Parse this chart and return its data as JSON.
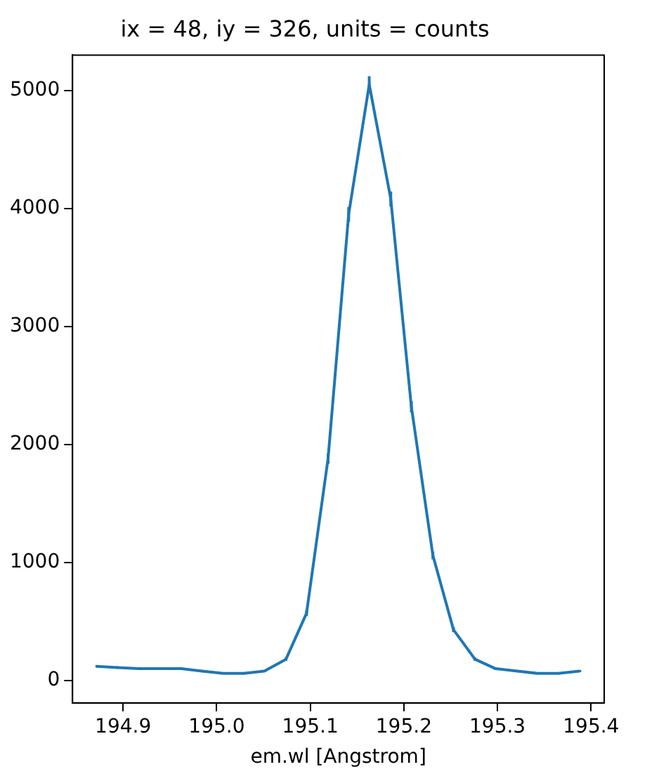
{
  "chart_data": {
    "type": "line",
    "title": "ix = 48, iy = 326, units = counts",
    "xlabel": "em.wl [Angstrom]",
    "x": [
      194.872,
      194.894,
      194.917,
      194.939,
      194.962,
      194.984,
      195.007,
      195.029,
      195.051,
      195.074,
      195.096,
      195.119,
      195.141,
      195.163,
      195.186,
      195.208,
      195.231,
      195.253,
      195.276,
      195.298,
      195.321,
      195.343,
      195.365,
      195.388
    ],
    "series": [
      {
        "color": "#1f77b4",
        "values": [
          120,
          110,
          100,
          100,
          100,
          80,
          60,
          60,
          80,
          180,
          570,
          1880,
          3950,
          5050,
          4080,
          2320,
          1060,
          430,
          180,
          100,
          80,
          60,
          60,
          80
        ],
        "errors": [
          11,
          11,
          10,
          10,
          10,
          9,
          8,
          8,
          9,
          14,
          24,
          43,
          63,
          71,
          64,
          48,
          33,
          21,
          14,
          10,
          9,
          8,
          8,
          9
        ]
      }
    ],
    "xlim": [
      194.846,
      195.414
    ],
    "ylim": [
      -190,
      5300
    ],
    "xticks": [
      194.9,
      {
        "value": 195.0,
        "label": "195.0"
      },
      195.1,
      195.2,
      195.3,
      195.4
    ],
    "yticks": [
      0,
      1000,
      2000,
      3000,
      4000,
      5000
    ],
    "grid": false,
    "legend": false,
    "marker": "none",
    "line_style": "solid"
  }
}
